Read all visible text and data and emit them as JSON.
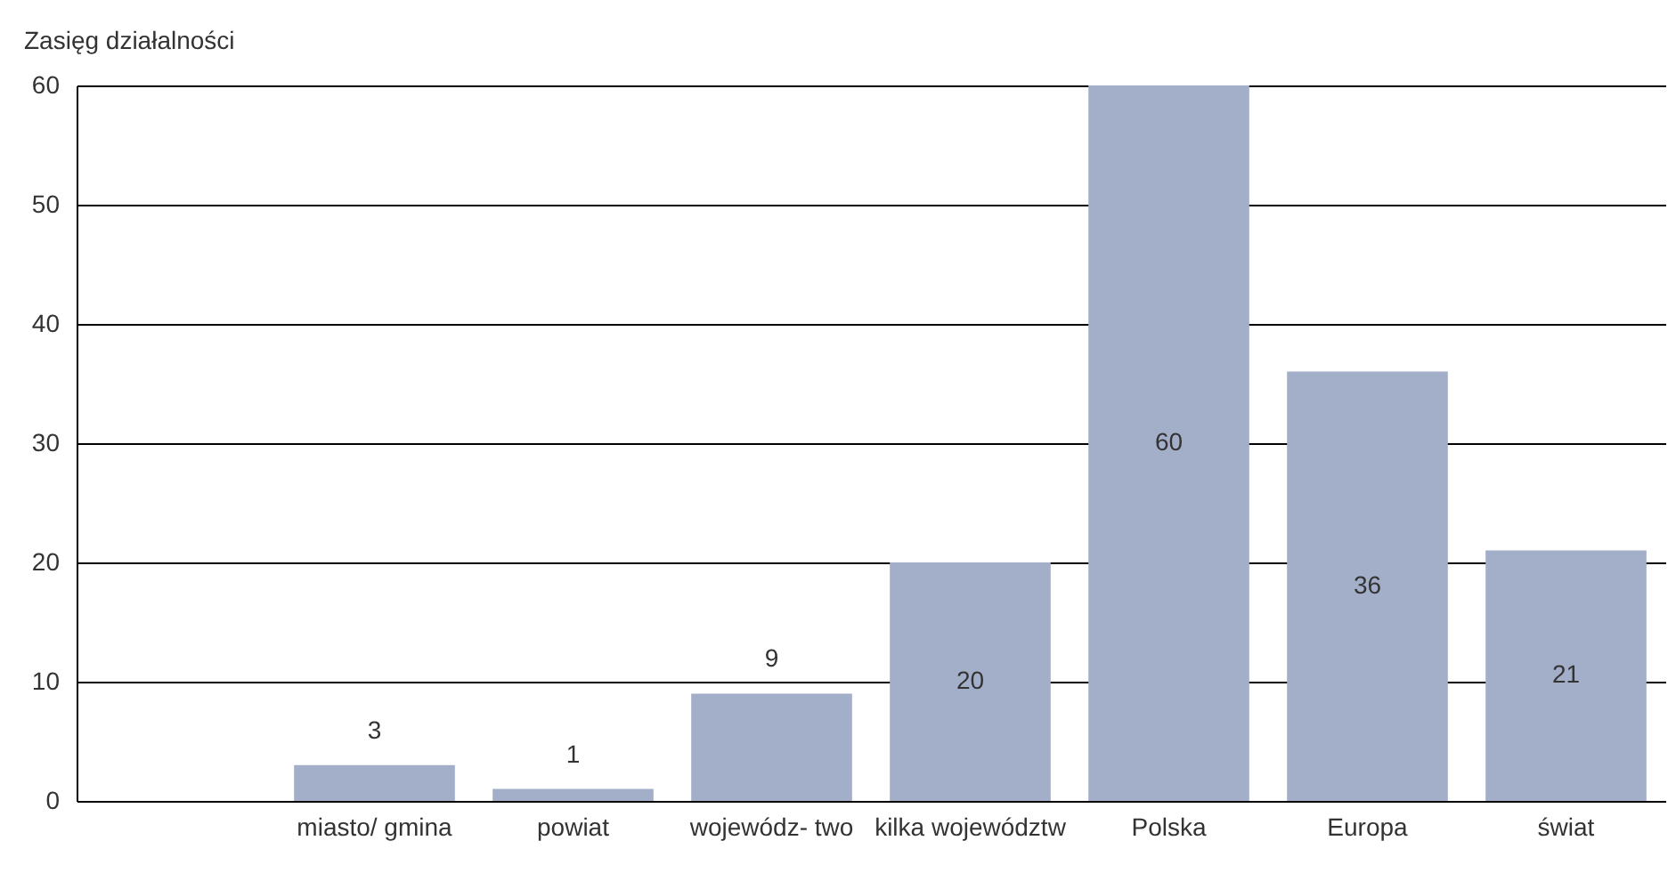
{
  "chart_data": {
    "type": "bar",
    "ylabel": "Zasięg działalności",
    "categories": [
      null,
      "miasto/\ngmina",
      "powiat",
      "wojewódz-\ntwo",
      "kilka\nwojewództw",
      "Polska",
      "Europa",
      "świat"
    ],
    "values": [
      null,
      3,
      1,
      9,
      20,
      60,
      36,
      21
    ],
    "color": "#a3aec9",
    "ylim": [
      0,
      60
    ],
    "yticks": [
      0,
      10,
      20,
      30,
      40,
      50,
      60
    ],
    "grid": "y",
    "data_labels": true
  }
}
